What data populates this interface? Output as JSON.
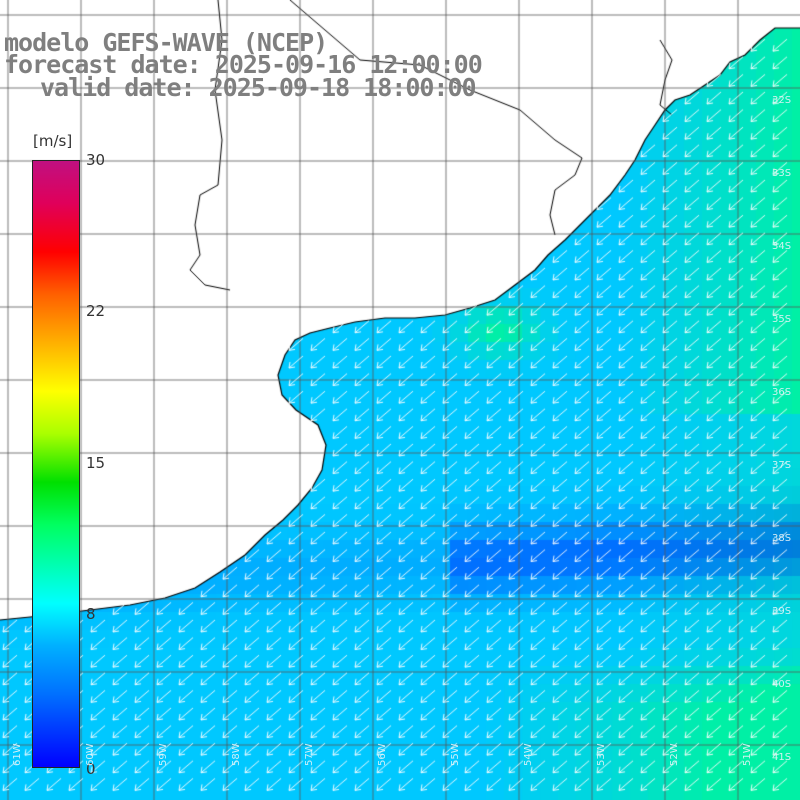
{
  "title": {
    "model": "modelo GEFS-WAVE (NCEP)",
    "forecast": "forecast date: 2025-09-16 12:00:00",
    "valid": "valid date: 2025-09-18 18:00:00"
  },
  "legend": {
    "units": "[m/s]",
    "ticks": [
      "30",
      "22",
      "15",
      "8",
      "0"
    ]
  },
  "map_labels": {
    "latitudes": [
      "32S",
      "33S",
      "34S",
      "35S",
      "36S",
      "37S",
      "38S",
      "39S",
      "40S",
      "41S"
    ],
    "longitudes": [
      "61W",
      "60W",
      "59W",
      "58W",
      "57W",
      "56W",
      "55W",
      "54W",
      "53W",
      "52W",
      "51W"
    ]
  },
  "colors": {
    "land": "#ffffff",
    "coast": "#000000",
    "grid": "#555555",
    "arrows": "#ffffff",
    "field_low": "#0050ff",
    "field_mid": "#00c8ff",
    "field_high": "#00ffa0",
    "title": "#7f7f7f"
  }
}
